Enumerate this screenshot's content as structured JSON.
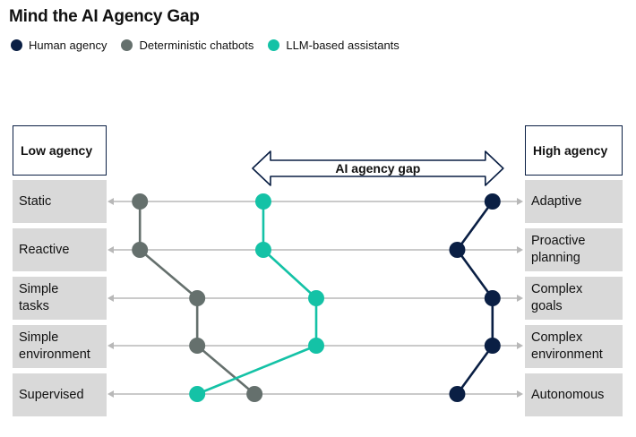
{
  "title": "Mind the AI Agency Gap",
  "legend": [
    {
      "label": "Human agency",
      "color": "#0a1f44"
    },
    {
      "label": "Deterministic chatbots",
      "color": "#65706d"
    },
    {
      "label": "LLM-based assistants",
      "color": "#14c2a6"
    }
  ],
  "headers": {
    "low": "Low agency",
    "high": "High agency"
  },
  "gap_label": "AI agency gap",
  "chart_data": {
    "type": "line",
    "title": "Mind the AI Agency Gap",
    "x_scale": {
      "low": "Low agency",
      "high": "High agency",
      "range": [
        0,
        1
      ]
    },
    "dimensions": [
      {
        "low": "Static",
        "high": "Adaptive"
      },
      {
        "low": "Reactive",
        "high": "Proactive\nplanning"
      },
      {
        "low": "Simple\ntasks",
        "high": "Complex\ngoals"
      },
      {
        "low": "Simple\nenvironment",
        "high": "Complex\nenvironment"
      },
      {
        "low": "Supervised",
        "high": "Autonomous"
      }
    ],
    "series": [
      {
        "name": "Deterministic chatbots",
        "color": "#65706d",
        "values": [
          0.1,
          0.1,
          0.23,
          0.23,
          0.36
        ]
      },
      {
        "name": "LLM-based assistants",
        "color": "#14c2a6",
        "values": [
          0.38,
          0.38,
          0.5,
          0.5,
          0.23
        ]
      },
      {
        "name": "Human agency",
        "color": "#0a1f44",
        "values": [
          0.9,
          0.82,
          0.9,
          0.9,
          0.82
        ]
      }
    ],
    "annotation": {
      "label": "AI agency gap",
      "from": 0.38,
      "to": 0.9
    }
  }
}
